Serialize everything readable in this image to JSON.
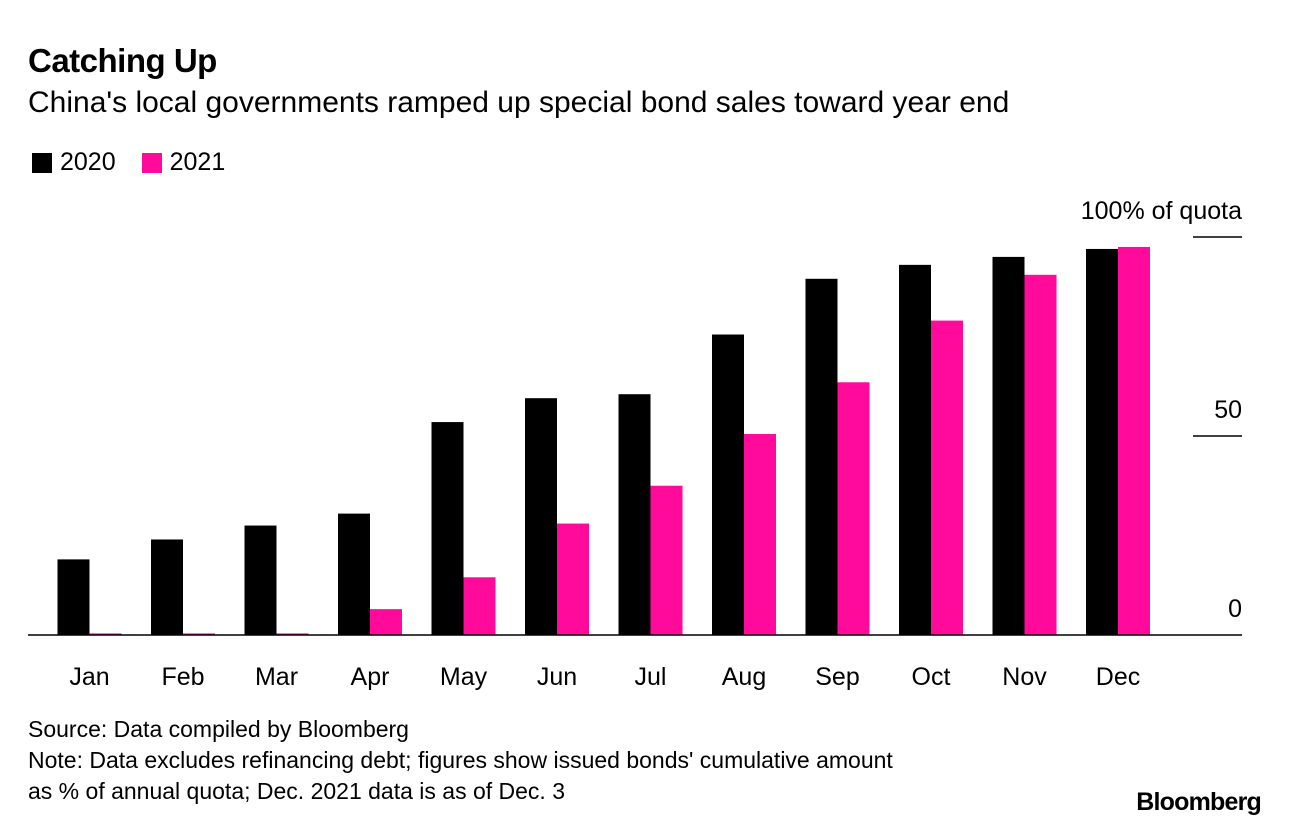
{
  "header": {
    "title": "Catching Up",
    "subtitle": "China's local governments ramped up special bond sales toward year end"
  },
  "colors": {
    "series_2020": "#000000",
    "series_2021": "#ff0a9b",
    "axis": "#000000"
  },
  "chart_data": {
    "type": "bar",
    "title": "Catching Up",
    "subtitle": "China's local governments ramped up special bond sales toward year end",
    "categories": [
      "Jan",
      "Feb",
      "Mar",
      "Apr",
      "May",
      "Jun",
      "Jul",
      "Aug",
      "Sep",
      "Oct",
      "Nov",
      "Dec"
    ],
    "series": [
      {
        "name": "2020",
        "values": [
          19,
          24,
          27.5,
          30.5,
          53.5,
          59.5,
          60.5,
          75.5,
          89.5,
          93,
          95,
          97
        ]
      },
      {
        "name": "2021",
        "values": [
          0.4,
          0.4,
          0.4,
          6.5,
          14.5,
          28,
          37.5,
          50.5,
          63.5,
          79,
          90.5,
          97.5
        ]
      }
    ],
    "y_ticks": [
      {
        "value": 100,
        "label": "100% of quota"
      },
      {
        "value": 50,
        "label": "50"
      },
      {
        "value": 0,
        "label": "0"
      }
    ],
    "xlabel": "",
    "ylabel": "% of annual quota",
    "ylim": [
      0,
      100
    ],
    "grid": false,
    "legend_position": "top-left"
  },
  "legend": [
    {
      "label": "2020"
    },
    {
      "label": "2021"
    }
  ],
  "footer": {
    "source": "Source: Data compiled by Bloomberg",
    "note_line1": "Note: Data excludes refinancing debt; figures show issued bonds' cumulative amount",
    "note_line2": "as % of annual quota; Dec. 2021 data is as of Dec. 3",
    "brand": "Bloomberg"
  }
}
